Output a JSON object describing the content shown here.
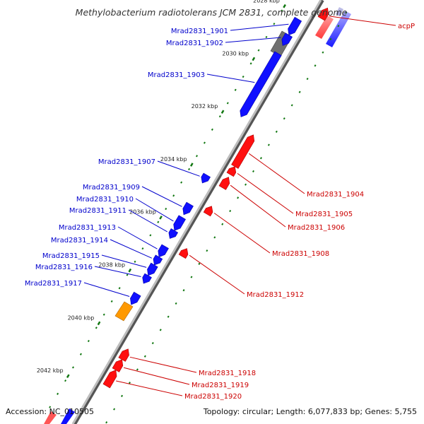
{
  "title": "Methylobacterium radiotolerans JCM 2831, complete genome",
  "footer": {
    "accession": "Accession: NC_010505",
    "topology": "Topology: circular; Length: 6,077,833 bp; Genes: 5,755"
  },
  "colors": {
    "forward": "#1010ff",
    "reverse": "#ff1010",
    "grey_feature": "#707070",
    "orange_feature": "#ff9900",
    "forward_label": "#0000cc",
    "reverse_label": "#cc0000",
    "backbone": "#888888",
    "tick": "#117711"
  },
  "ticks": [
    {
      "kbp": 2028,
      "label": "2028 kbp"
    },
    {
      "kbp": 2030,
      "label": "2030 kbp"
    },
    {
      "kbp": 2032,
      "label": "2032 kbp"
    },
    {
      "kbp": 2034,
      "label": "2034 kbp"
    },
    {
      "kbp": 2036,
      "label": "2036 kbp"
    },
    {
      "kbp": 2038,
      "label": "2038 kbp"
    },
    {
      "kbp": 2040,
      "label": "2040 kbp"
    },
    {
      "kbp": 2042,
      "label": "2042 kbp"
    }
  ],
  "genes": [
    {
      "id": "Mrad2831_1901",
      "strand": "+",
      "start": 2028.2,
      "end": 2028.8
    },
    {
      "id": "Mrad2831_1902",
      "strand": "+",
      "start": 2028.8,
      "end": 2029.2
    },
    {
      "id": "Mrad2831_1903",
      "strand": "+",
      "start": 2029.5,
      "end": 2031.9
    },
    {
      "id": "Mrad2831_1904",
      "strand": "-",
      "start": 2032.2,
      "end": 2033.4
    },
    {
      "id": "Mrad2831_1905",
      "strand": "-",
      "start": 2033.4,
      "end": 2033.7
    },
    {
      "id": "Mrad2831_1906",
      "strand": "-",
      "start": 2033.8,
      "end": 2034.2
    },
    {
      "id": "Mrad2831_1907",
      "strand": "+",
      "start": 2034.1,
      "end": 2034.4
    },
    {
      "id": "Mrad2831_1908",
      "strand": "-",
      "start": 2034.9,
      "end": 2035.2
    },
    {
      "id": "Mrad2831_1909",
      "strand": "+",
      "start": 2035.2,
      "end": 2035.6
    },
    {
      "id": "Mrad2831_1910",
      "strand": "+",
      "start": 2035.7,
      "end": 2036.2
    },
    {
      "id": "Mrad2831_1911",
      "strand": "+",
      "start": 2036.2,
      "end": 2036.5
    },
    {
      "id": "Mrad2831_1912",
      "strand": "-",
      "start": 2036.5,
      "end": 2036.8
    },
    {
      "id": "Mrad2831_1913",
      "strand": "+",
      "start": 2036.8,
      "end": 2037.2
    },
    {
      "id": "Mrad2831_1914",
      "strand": "+",
      "start": 2037.2,
      "end": 2037.5
    },
    {
      "id": "Mrad2831_1915",
      "strand": "+",
      "start": 2037.5,
      "end": 2037.9
    },
    {
      "id": "Mrad2831_1916",
      "strand": "+",
      "start": 2037.9,
      "end": 2038.2
    },
    {
      "id": "Mrad2831_1917",
      "strand": "+",
      "start": 2038.6,
      "end": 2039.0
    },
    {
      "id": "Mrad2831_1918",
      "strand": "-",
      "start": 2040.3,
      "end": 2040.7
    },
    {
      "id": "Mrad2831_1919",
      "strand": "-",
      "start": 2040.7,
      "end": 2041.1
    },
    {
      "id": "Mrad2831_1920",
      "strand": "-",
      "start": 2041.1,
      "end": 2041.7
    },
    {
      "id": "acpP",
      "strand": "-",
      "start": 2027.4,
      "end": 2027.8
    }
  ]
}
